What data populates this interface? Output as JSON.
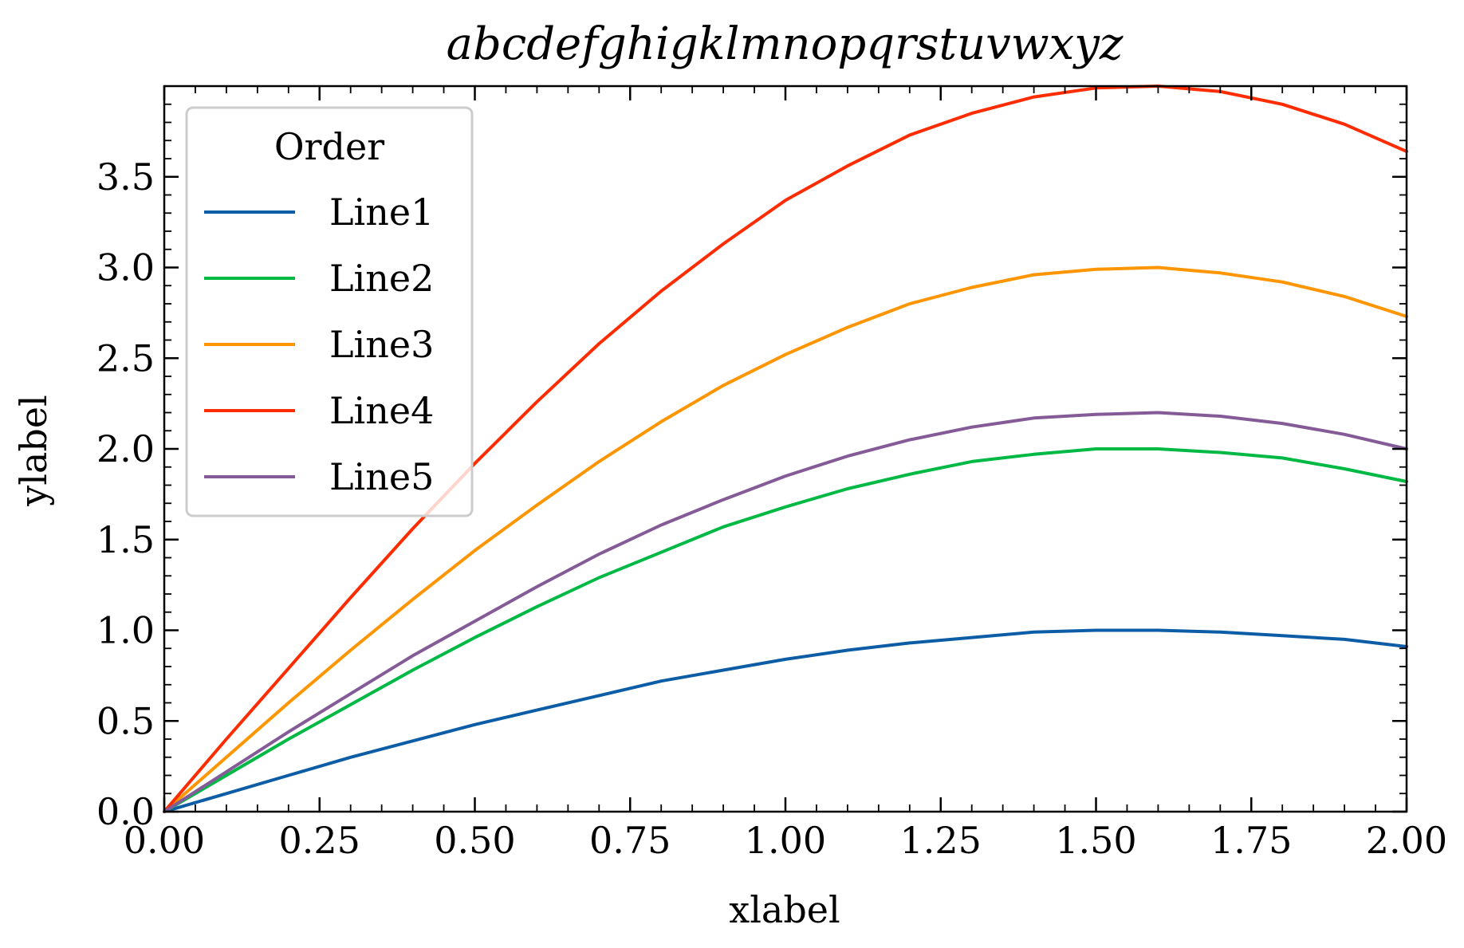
{
  "chart_data": {
    "type": "line",
    "title": "abcdefghigklmnopqrstuvwxyz",
    "xlabel": "xlabel",
    "ylabel": "ylabel",
    "xlim": [
      0,
      2
    ],
    "ylim": [
      0,
      4
    ],
    "x_ticks": [
      "0.00",
      "0.25",
      "0.50",
      "0.75",
      "1.00",
      "1.25",
      "1.50",
      "1.75",
      "2.00"
    ],
    "y_ticks": [
      "0.0",
      "0.5",
      "1.0",
      "1.5",
      "2.0",
      "2.5",
      "3.0",
      "3.5"
    ],
    "legend_title": "Order",
    "legend_position": "upper-left",
    "grid": false,
    "x": [
      0,
      0.1,
      0.2,
      0.3,
      0.4,
      0.5,
      0.6,
      0.7,
      0.8,
      0.9,
      1.0,
      1.1,
      1.2,
      1.3,
      1.4,
      1.5,
      1.6,
      1.7,
      1.8,
      1.9,
      2.0
    ],
    "series": [
      {
        "name": "Line1",
        "color": "#0C5DA5",
        "values": [
          0.0,
          0.1,
          0.2,
          0.3,
          0.39,
          0.48,
          0.56,
          0.64,
          0.72,
          0.78,
          0.84,
          0.89,
          0.93,
          0.96,
          0.99,
          1.0,
          1.0,
          0.99,
          0.97,
          0.95,
          0.91
        ]
      },
      {
        "name": "Line2",
        "color": "#00B945",
        "values": [
          0.0,
          0.2,
          0.4,
          0.59,
          0.78,
          0.96,
          1.13,
          1.29,
          1.43,
          1.57,
          1.68,
          1.78,
          1.86,
          1.93,
          1.97,
          2.0,
          2.0,
          1.98,
          1.95,
          1.89,
          1.82
        ]
      },
      {
        "name": "Line3",
        "color": "#FF9500",
        "values": [
          0.0,
          0.3,
          0.6,
          0.89,
          1.17,
          1.44,
          1.69,
          1.93,
          2.15,
          2.35,
          2.52,
          2.67,
          2.8,
          2.89,
          2.96,
          2.99,
          3.0,
          2.97,
          2.92,
          2.84,
          2.73
        ]
      },
      {
        "name": "Line4",
        "color": "#FF2C00",
        "values": [
          0.0,
          0.4,
          0.79,
          1.18,
          1.56,
          1.92,
          2.26,
          2.58,
          2.87,
          3.13,
          3.37,
          3.56,
          3.73,
          3.85,
          3.94,
          3.99,
          4.0,
          3.97,
          3.9,
          3.79,
          3.64
        ]
      },
      {
        "name": "Line5",
        "color": "#845B97",
        "values": [
          0.0,
          0.22,
          0.44,
          0.65,
          0.86,
          1.05,
          1.24,
          1.42,
          1.58,
          1.72,
          1.85,
          1.96,
          2.05,
          2.12,
          2.17,
          2.19,
          2.2,
          2.18,
          2.14,
          2.08,
          2.0
        ]
      }
    ]
  }
}
